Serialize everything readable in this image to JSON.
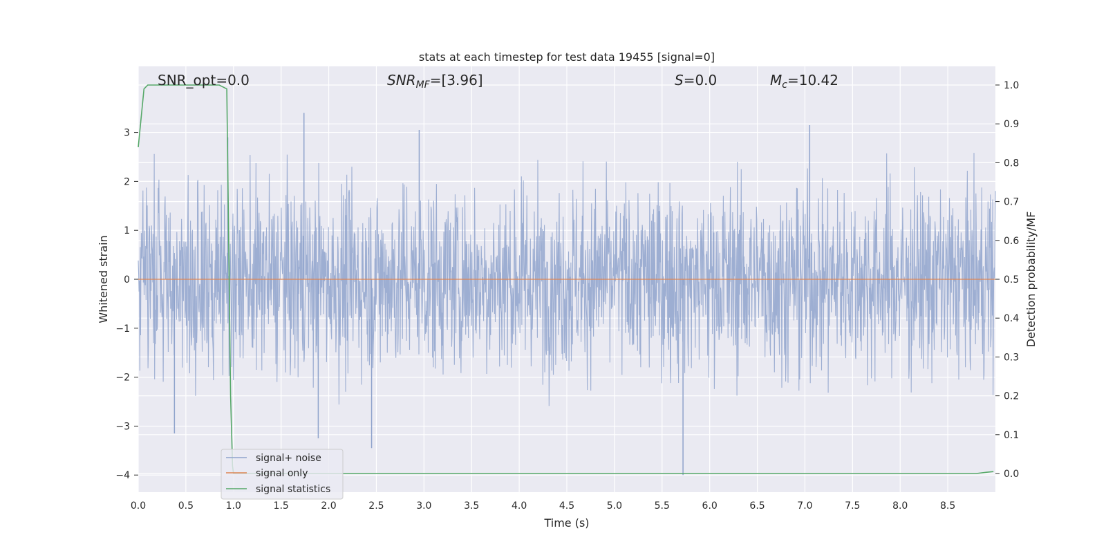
{
  "chart_data": {
    "type": "line",
    "title": "stats at each timestep for test data 19455 [signal=0]",
    "xlabel": "Time (s)",
    "ylabel": "Whitened strain",
    "y2label": "Detection probability/MF",
    "xlim": [
      0.0,
      9.0
    ],
    "ylim": [
      -4.35,
      4.35
    ],
    "y2lim": [
      -0.048,
      1.048
    ],
    "xticks": [
      "0.0",
      "0.5",
      "1.0",
      "1.5",
      "2.0",
      "2.5",
      "3.0",
      "3.5",
      "4.0",
      "4.5",
      "5.0",
      "5.5",
      "6.0",
      "6.5",
      "7.0",
      "7.5",
      "8.0",
      "8.5"
    ],
    "yticks": [
      "3",
      "2",
      "1",
      "0",
      "−1",
      "−2",
      "−3",
      "−4"
    ],
    "y2ticks": [
      "1.0",
      "0.9",
      "0.8",
      "0.7",
      "0.6",
      "0.5",
      "0.4",
      "0.3",
      "0.2",
      "0.1",
      "0.0"
    ],
    "grid": true,
    "legend_position": "lower-left",
    "annotations": {
      "snr_opt": "SNR_opt=0.0",
      "snr_mf_main": "SNR",
      "snr_mf_sub": "MF",
      "snr_mf_value": "=[3.96]",
      "s_main": "S",
      "s_value": "=0.0",
      "mc_main": "M",
      "mc_sub": "c",
      "mc_value": "=10.42"
    },
    "series": [
      {
        "name": "signal+ noise",
        "color": "#8fa3cc",
        "axis": "left",
        "description_values": {
          "amplitude_std": 0.95,
          "peaks": [
            [
              0.94,
              2.9
            ],
            [
              1.74,
              3.4
            ],
            [
              2.95,
              3.05
            ],
            [
              7.05,
              3.15
            ],
            [
              0.38,
              -3.15
            ],
            [
              1.89,
              -3.25
            ],
            [
              2.45,
              -3.45
            ],
            [
              5.72,
              -4.0
            ]
          ]
        }
      },
      {
        "name": "signal only",
        "color": "#dd8452",
        "axis": "left",
        "x": [
          0.0,
          9.0
        ],
        "y": [
          0.0,
          0.0
        ]
      },
      {
        "name": "signal statistics",
        "color": "#55a868",
        "axis": "right",
        "x": [
          0.0,
          0.06,
          0.1,
          0.5,
          0.85,
          0.93,
          0.97,
          0.99,
          1.0,
          8.8,
          8.9,
          8.98
        ],
        "y": [
          0.84,
          0.99,
          1.0,
          1.0,
          1.0,
          0.99,
          0.2,
          0.02,
          0.0,
          0.0,
          0.003,
          0.005
        ]
      }
    ]
  }
}
